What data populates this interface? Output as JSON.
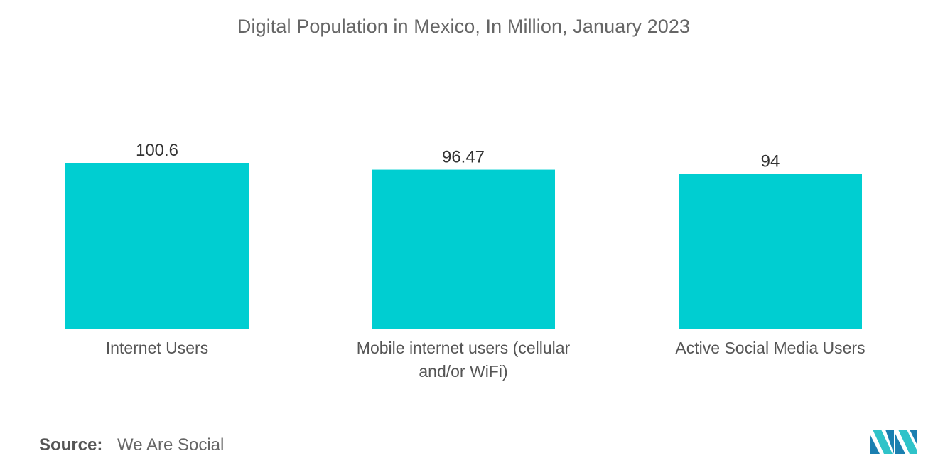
{
  "chart_data": {
    "type": "bar",
    "title": "Digital Population in Mexico, In Million, January 2023",
    "categories": [
      [
        "Internet Users"
      ],
      [
        "Mobile internet users (cellular",
        "and/or WiFi)"
      ],
      [
        "Active Social Media Users"
      ]
    ],
    "values": [
      100.6,
      96.47,
      94
    ],
    "value_labels": [
      "100.6",
      "96.47",
      "94"
    ],
    "ylim": [
      0,
      100.6
    ],
    "grid": false,
    "legend": "none",
    "bar_color": "#00CED1"
  },
  "source": {
    "label": "Source:",
    "text": "We Are Social"
  },
  "logo": {
    "icon": "mordor-intelligence-logo-icon",
    "colors": [
      "#1a7fb0",
      "#2fc3c9"
    ]
  }
}
